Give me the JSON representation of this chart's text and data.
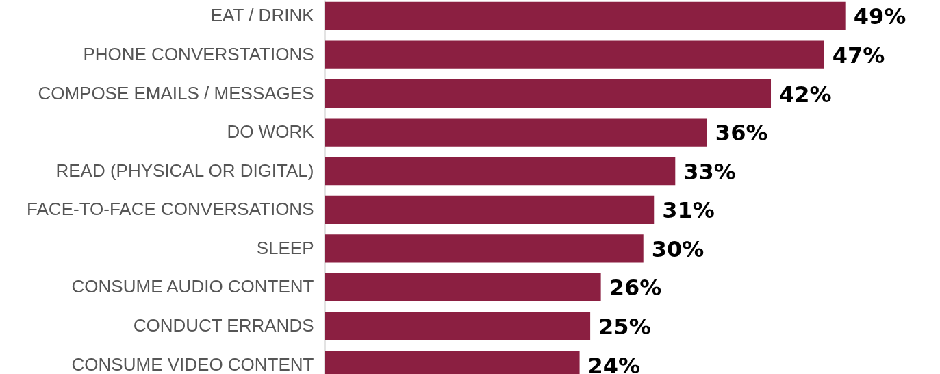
{
  "chart_data": {
    "type": "bar",
    "orientation": "horizontal",
    "categories": [
      "EAT / DRINK",
      "PHONE CONVERSTATIONS",
      "COMPOSE EMAILS / MESSAGES",
      "DO WORK",
      "READ (PHYSICAL OR DIGITAL)",
      "FACE-TO-FACE CONVERSATIONS",
      "SLEEP",
      "CONSUME AUDIO CONTENT",
      "CONDUCT ERRANDS",
      "CONSUME VIDEO CONTENT"
    ],
    "values": [
      49,
      47,
      42,
      36,
      33,
      31,
      30,
      26,
      25,
      24
    ],
    "value_labels": [
      "49%",
      "47%",
      "42%",
      "36%",
      "33%",
      "31%",
      "30%",
      "26%",
      "25%",
      "24%"
    ],
    "color": "#8b1f41"
  }
}
